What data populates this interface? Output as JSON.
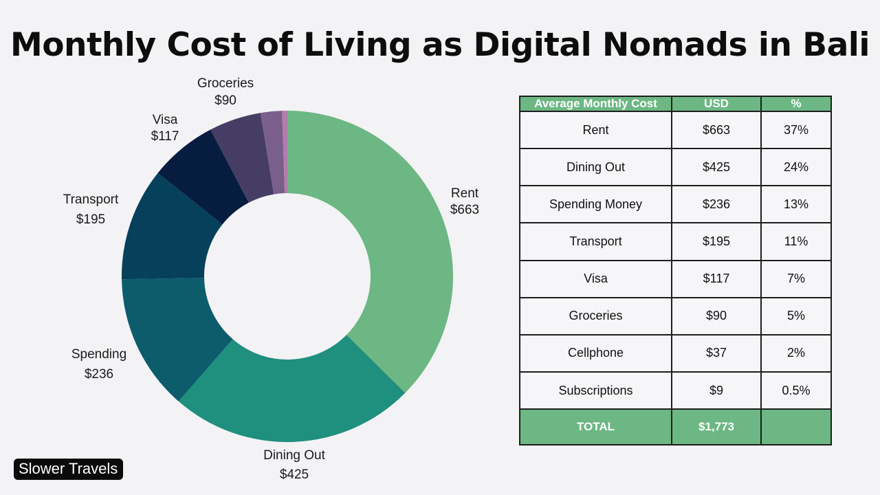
{
  "title": "Monthly Cost of Living as Digital Nomads in Bali",
  "brand": "Slower Travels",
  "chart_data": {
    "type": "pie",
    "variant": "donut",
    "title": "Monthly Cost of Living as Digital Nomads in Bali",
    "slices": [
      {
        "label": "Rent",
        "value_label": "$663",
        "value": 663,
        "color": "#6cb783"
      },
      {
        "label": "Dining Out",
        "value_label": "$425",
        "value": 425,
        "color": "#1f8f7e"
      },
      {
        "label": "Spending",
        "value_label": "$236",
        "value": 236,
        "color": "#0c5c6c"
      },
      {
        "label": "Transport",
        "value_label": "$195",
        "value": 195,
        "color": "#06405b"
      },
      {
        "label": "Visa",
        "value_label": "$117",
        "value": 117,
        "color": "#071d40"
      },
      {
        "label": "Groceries",
        "value_label": "$90",
        "value": 90,
        "color": "#453d63"
      },
      {
        "label": "",
        "value_label": "",
        "value": 37,
        "color": "#7a5f8c"
      },
      {
        "label": "",
        "value_label": "",
        "value": 9,
        "color": "#b27dab"
      }
    ]
  },
  "table": {
    "headers": [
      "Average Monthly Cost",
      "USD",
      "%"
    ],
    "rows": [
      [
        "Rent",
        "$663",
        "37%"
      ],
      [
        "Dining Out",
        "$425",
        "24%"
      ],
      [
        "Spending Money",
        "$236",
        "13%"
      ],
      [
        "Transport",
        "$195",
        "11%"
      ],
      [
        "Visa",
        "$117",
        "7%"
      ],
      [
        "Groceries",
        "$90",
        "5%"
      ],
      [
        "Cellphone",
        "$37",
        "2%"
      ],
      [
        "Subscriptions",
        "$9",
        "0.5%"
      ]
    ],
    "total": [
      "TOTAL",
      "$1,773",
      ""
    ]
  },
  "colors": {
    "background": "#f3f2f5",
    "header_green": "#6cb783",
    "border": "#1d1d1d"
  }
}
